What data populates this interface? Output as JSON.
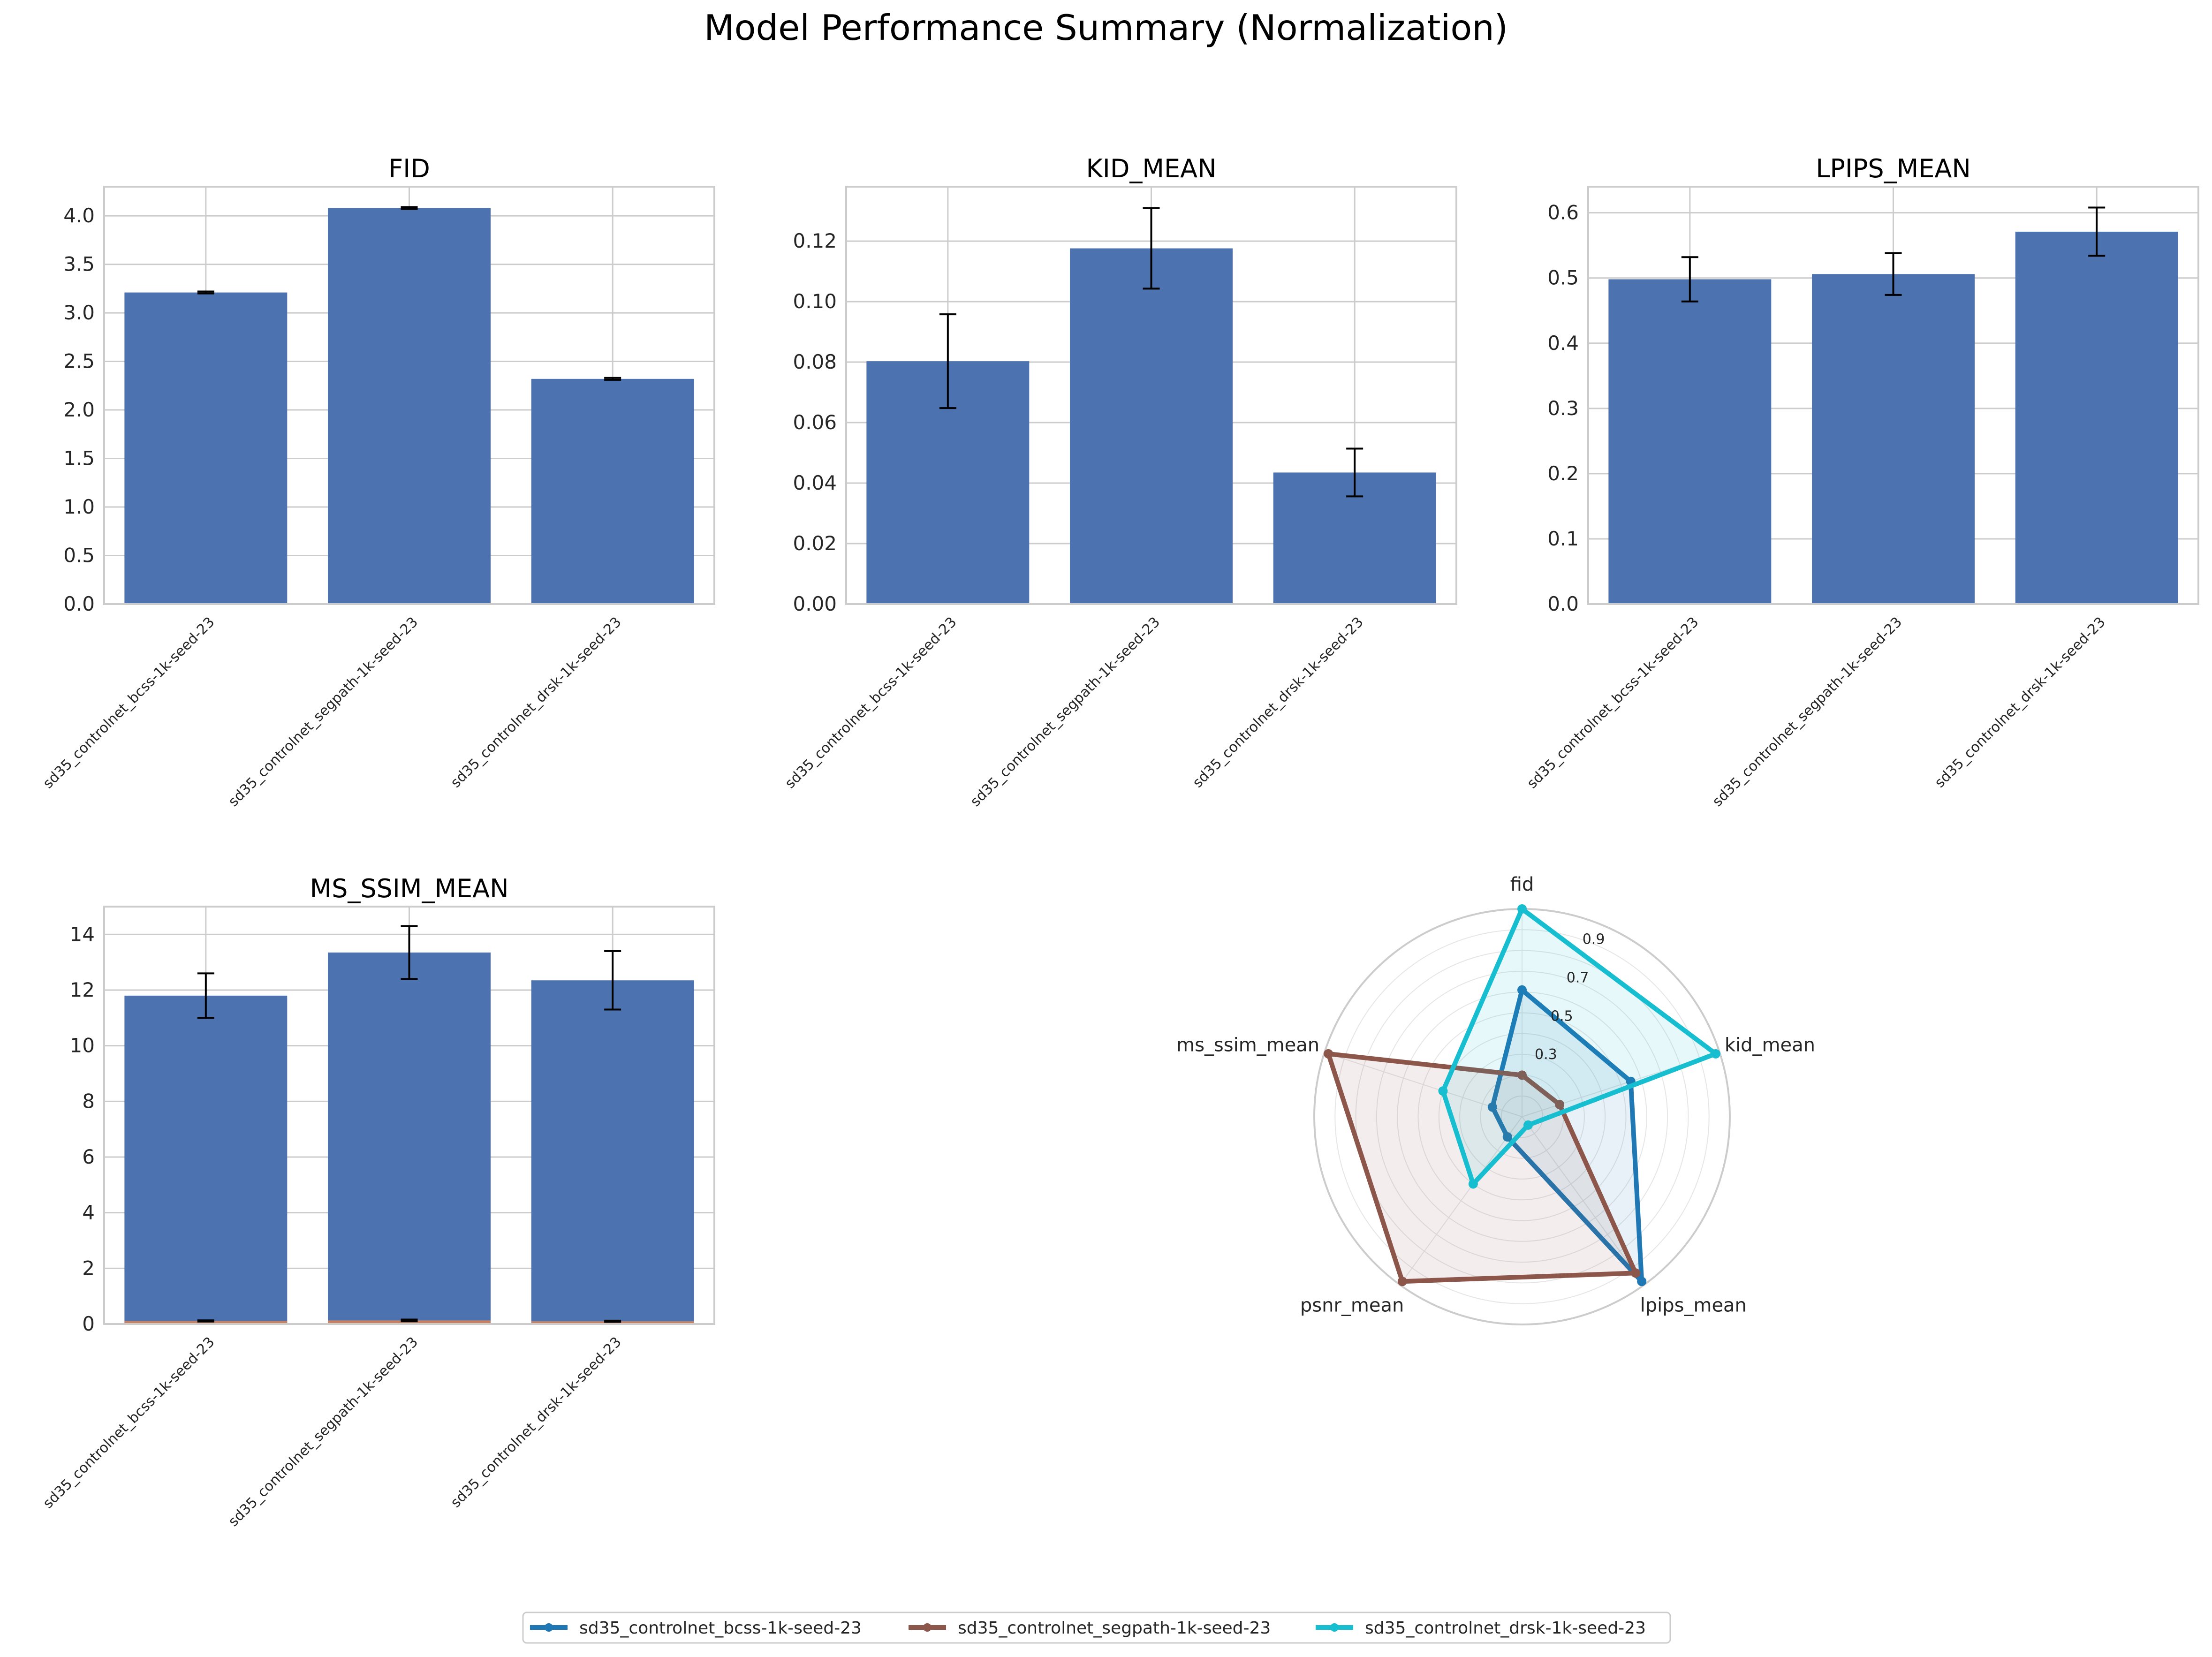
{
  "title": "Model Performance Summary (Normalization)",
  "colors": {
    "bar": "#4c72b0",
    "grid": "#cccccc",
    "axis_frame": "#cccccc",
    "error_bar": "#000000",
    "series": [
      "#1f77b4",
      "#8c564b",
      "#17becf"
    ]
  },
  "chart_data": [
    {
      "type": "bar",
      "title": "FID",
      "categories": [
        "sd35_controlnet_bcss-1k-seed-23",
        "sd35_controlnet_segpath-1k-seed-23",
        "sd35_controlnet_drsk-1k-seed-23"
      ],
      "values": [
        3.21,
        4.08,
        2.32
      ],
      "errors": [
        0.01,
        0.01,
        0.01
      ],
      "ylim": [
        0,
        4.3
      ],
      "yticks": [
        0,
        0.5,
        1.0,
        1.5,
        2.0,
        2.5,
        3.0,
        3.5,
        4.0
      ],
      "ytick_labels": [
        "0.0",
        "0.5",
        "1.0",
        "1.5",
        "2.0",
        "2.5",
        "3.0",
        "3.5",
        "4.0"
      ],
      "grid": true
    },
    {
      "type": "bar",
      "title": "KID_MEAN",
      "categories": [
        "sd35_controlnet_bcss-1k-seed-23",
        "sd35_controlnet_segpath-1k-seed-23",
        "sd35_controlnet_drsk-1k-seed-23"
      ],
      "values": [
        0.0803,
        0.1176,
        0.0435
      ],
      "errors": [
        0.0155,
        0.0133,
        0.0079
      ],
      "ylim": [
        0,
        0.138
      ],
      "yticks": [
        0,
        0.02,
        0.04,
        0.06,
        0.08,
        0.1,
        0.12
      ],
      "ytick_labels": [
        "0.00",
        "0.02",
        "0.04",
        "0.06",
        "0.08",
        "0.10",
        "0.12"
      ],
      "grid": true
    },
    {
      "type": "bar",
      "title": "LPIPS_MEAN",
      "categories": [
        "sd35_controlnet_bcss-1k-seed-23",
        "sd35_controlnet_segpath-1k-seed-23",
        "sd35_controlnet_drsk-1k-seed-23"
      ],
      "values": [
        0.498,
        0.506,
        0.571
      ],
      "errors": [
        0.034,
        0.032,
        0.037
      ],
      "ylim": [
        0,
        0.64
      ],
      "yticks": [
        0,
        0.1,
        0.2,
        0.3,
        0.4,
        0.5,
        0.6
      ],
      "ytick_labels": [
        "0.0",
        "0.1",
        "0.2",
        "0.3",
        "0.4",
        "0.5",
        "0.6"
      ],
      "grid": true
    },
    {
      "type": "bar",
      "title": "MS_SSIM_MEAN",
      "categories": [
        "sd35_controlnet_bcss-1k-seed-23",
        "sd35_controlnet_segpath-1k-seed-23",
        "sd35_controlnet_drsk-1k-seed-23"
      ],
      "values": [
        11.8,
        13.35,
        12.35
      ],
      "errors": [
        0.8,
        0.95,
        1.05
      ],
      "overlay_values": [
        0.11,
        0.13,
        0.1
      ],
      "overlay_errors": [
        0.02,
        0.03,
        0.02
      ],
      "ylim": [
        0,
        15
      ],
      "yticks": [
        0,
        2,
        4,
        6,
        8,
        10,
        12,
        14
      ],
      "ytick_labels": [
        "0",
        "2",
        "4",
        "6",
        "8",
        "10",
        "12",
        "14"
      ],
      "grid": true
    },
    {
      "type": "radar",
      "axes": [
        "fid",
        "kid_mean",
        "lpips_mean",
        "psnr_mean",
        "ms_ssim_mean"
      ],
      "rlim": [
        0,
        1.0
      ],
      "rticks": [
        0.3,
        0.5,
        0.7,
        0.9
      ],
      "rtick_labels": [
        "0.3",
        "0.5",
        "0.7",
        "0.9"
      ],
      "series": [
        {
          "name": "sd35_controlnet_bcss-1k-seed-23",
          "values": [
            0.61,
            0.55,
            0.98,
            0.12,
            0.15
          ]
        },
        {
          "name": "sd35_controlnet_segpath-1k-seed-23",
          "values": [
            0.2,
            0.19,
            0.93,
            0.98,
            0.98
          ]
        },
        {
          "name": "sd35_controlnet_drsk-1k-seed-23",
          "values": [
            1.0,
            0.98,
            0.05,
            0.4,
            0.4
          ]
        }
      ]
    }
  ]
}
